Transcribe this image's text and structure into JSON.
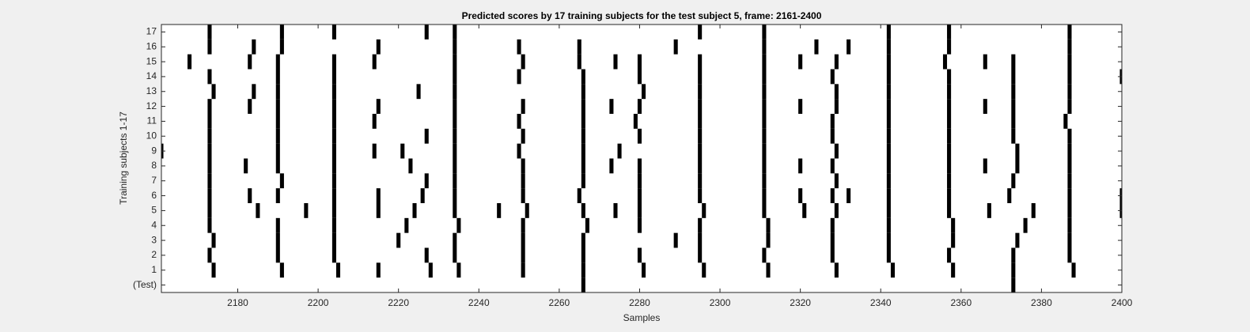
{
  "chart_data": {
    "type": "raster",
    "title": "Predicted scores by 17 training subjects for the test subject 5, frame: 2161-2400",
    "x_label": "Samples",
    "y_label": "Training subjects 1-17",
    "xlim": [
      2161,
      2400
    ],
    "xticks": [
      2180,
      2200,
      2220,
      2240,
      2260,
      2280,
      2300,
      2320,
      2340,
      2360,
      2380,
      2400
    ],
    "color": "#000000",
    "categories": [
      "(Test)",
      "1",
      "2",
      "3",
      "4",
      "5",
      "6",
      "7",
      "8",
      "9",
      "10",
      "11",
      "12",
      "13",
      "14",
      "15",
      "16",
      "17"
    ],
    "values": [
      [
        2266,
        2373
      ],
      [
        2174,
        2191,
        2205,
        2215,
        2228,
        2235,
        2251,
        2266,
        2281,
        2296,
        2312,
        2329,
        2343,
        2358,
        2373,
        2388
      ],
      [
        2173,
        2190,
        2204,
        2227,
        2234,
        2251,
        2266,
        2280,
        2295,
        2311,
        2328,
        2342,
        2357,
        2373,
        2387
      ],
      [
        2174,
        2190,
        2204,
        2220,
        2234,
        2251,
        2266,
        2289,
        2295,
        2312,
        2328,
        2342,
        2358,
        2374,
        2387
      ],
      [
        2173,
        2190,
        2204,
        2222,
        2235,
        2251,
        2267,
        2280,
        2295,
        2312,
        2328,
        2342,
        2358,
        2376,
        2387
      ],
      [
        2173,
        2185,
        2197,
        2204,
        2215,
        2224,
        2234,
        2245,
        2252,
        2266,
        2274,
        2280,
        2296,
        2311,
        2321,
        2329,
        2342,
        2357,
        2367,
        2378,
        2387,
        2400
      ],
      [
        2173,
        2183,
        2190,
        2204,
        2215,
        2226,
        2234,
        2251,
        2265,
        2280,
        2295,
        2311,
        2320,
        2328,
        2332,
        2342,
        2357,
        2372,
        2387,
        2400
      ],
      [
        2173,
        2191,
        2204,
        2227,
        2234,
        2251,
        2266,
        2280,
        2295,
        2311,
        2329,
        2342,
        2357,
        2373,
        2387
      ],
      [
        2173,
        2182,
        2190,
        2204,
        2223,
        2234,
        2251,
        2266,
        2273,
        2280,
        2295,
        2311,
        2320,
        2328,
        2342,
        2357,
        2366,
        2374,
        2387
      ],
      [
        2161,
        2173,
        2190,
        2204,
        2214,
        2221,
        2234,
        2250,
        2266,
        2275,
        2295,
        2311,
        2329,
        2342,
        2357,
        2374,
        2387
      ],
      [
        2173,
        2190,
        2204,
        2227,
        2234,
        2251,
        2266,
        2280,
        2295,
        2311,
        2328,
        2342,
        2357,
        2373,
        2387
      ],
      [
        2173,
        2190,
        2204,
        2214,
        2234,
        2250,
        2266,
        2279,
        2295,
        2311,
        2328,
        2342,
        2357,
        2373,
        2386
      ],
      [
        2173,
        2183,
        2190,
        2204,
        2215,
        2234,
        2251,
        2266,
        2273,
        2280,
        2295,
        2311,
        2320,
        2329,
        2342,
        2357,
        2366,
        2373,
        2387
      ],
      [
        2174,
        2184,
        2190,
        2204,
        2225,
        2234,
        2266,
        2281,
        2295,
        2311,
        2329,
        2342,
        2357,
        2373,
        2387
      ],
      [
        2173,
        2190,
        2204,
        2234,
        2250,
        2266,
        2280,
        2295,
        2311,
        2328,
        2342,
        2357,
        2373,
        2387,
        2400
      ],
      [
        2168,
        2183,
        2190,
        2204,
        2214,
        2234,
        2251,
        2265,
        2274,
        2280,
        2295,
        2311,
        2320,
        2329,
        2342,
        2356,
        2366,
        2373,
        2387
      ],
      [
        2173,
        2184,
        2191,
        2215,
        2234,
        2250,
        2265,
        2289,
        2311,
        2324,
        2332,
        2342,
        2357,
        2387
      ],
      [
        2173,
        2191,
        2204,
        2227,
        2234,
        2295,
        2311,
        2342,
        2357,
        2387
      ]
    ]
  }
}
